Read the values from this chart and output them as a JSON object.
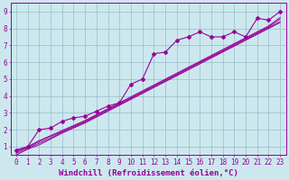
{
  "bg_color": "#cce8ee",
  "line_color": "#990099",
  "grid_color": "#99bbcc",
  "xlabel": "Windchill (Refroidissement éolien,°C)",
  "xlim": [
    -0.5,
    23.5
  ],
  "ylim": [
    0.5,
    9.5
  ],
  "yticks": [
    1,
    2,
    3,
    4,
    5,
    6,
    7,
    8,
    9
  ],
  "xticks": [
    0,
    1,
    2,
    3,
    4,
    5,
    6,
    7,
    8,
    9,
    10,
    11,
    12,
    13,
    14,
    15,
    16,
    17,
    18,
    19,
    20,
    21,
    22,
    23
  ],
  "tick_fontsize": 5.5,
  "xlabel_fontsize": 6.5,
  "series_marked": [
    0.8,
    1.0,
    2.0,
    2.1,
    2.5,
    2.7,
    2.8,
    3.1,
    3.4,
    3.6,
    4.7,
    5.0,
    6.5,
    6.6,
    7.3,
    7.5,
    7.8,
    7.5,
    7.5,
    7.8,
    7.5,
    8.6,
    8.5,
    9.0
  ],
  "series_linear": [
    [
      0.5,
      0.85,
      1.1,
      1.45,
      1.8,
      2.1,
      2.4,
      2.75,
      3.1,
      3.45,
      3.8,
      4.15,
      4.5,
      4.85,
      5.2,
      5.55,
      5.9,
      6.25,
      6.6,
      6.95,
      7.3,
      7.65,
      8.0,
      8.35
    ],
    [
      0.6,
      0.9,
      1.2,
      1.5,
      1.85,
      2.15,
      2.45,
      2.8,
      3.15,
      3.5,
      3.85,
      4.2,
      4.55,
      4.9,
      5.25,
      5.6,
      5.95,
      6.3,
      6.65,
      7.0,
      7.35,
      7.7,
      8.05,
      8.4
    ],
    [
      0.7,
      0.95,
      1.3,
      1.6,
      1.9,
      2.2,
      2.5,
      2.85,
      3.2,
      3.55,
      3.9,
      4.25,
      4.6,
      4.95,
      5.3,
      5.65,
      6.0,
      6.35,
      6.7,
      7.05,
      7.4,
      7.75,
      8.1,
      8.55
    ],
    [
      0.75,
      1.0,
      1.35,
      1.65,
      1.95,
      2.25,
      2.55,
      2.9,
      3.25,
      3.6,
      3.95,
      4.3,
      4.65,
      5.0,
      5.35,
      5.7,
      6.05,
      6.4,
      6.75,
      7.1,
      7.45,
      7.8,
      8.15,
      8.65
    ]
  ]
}
